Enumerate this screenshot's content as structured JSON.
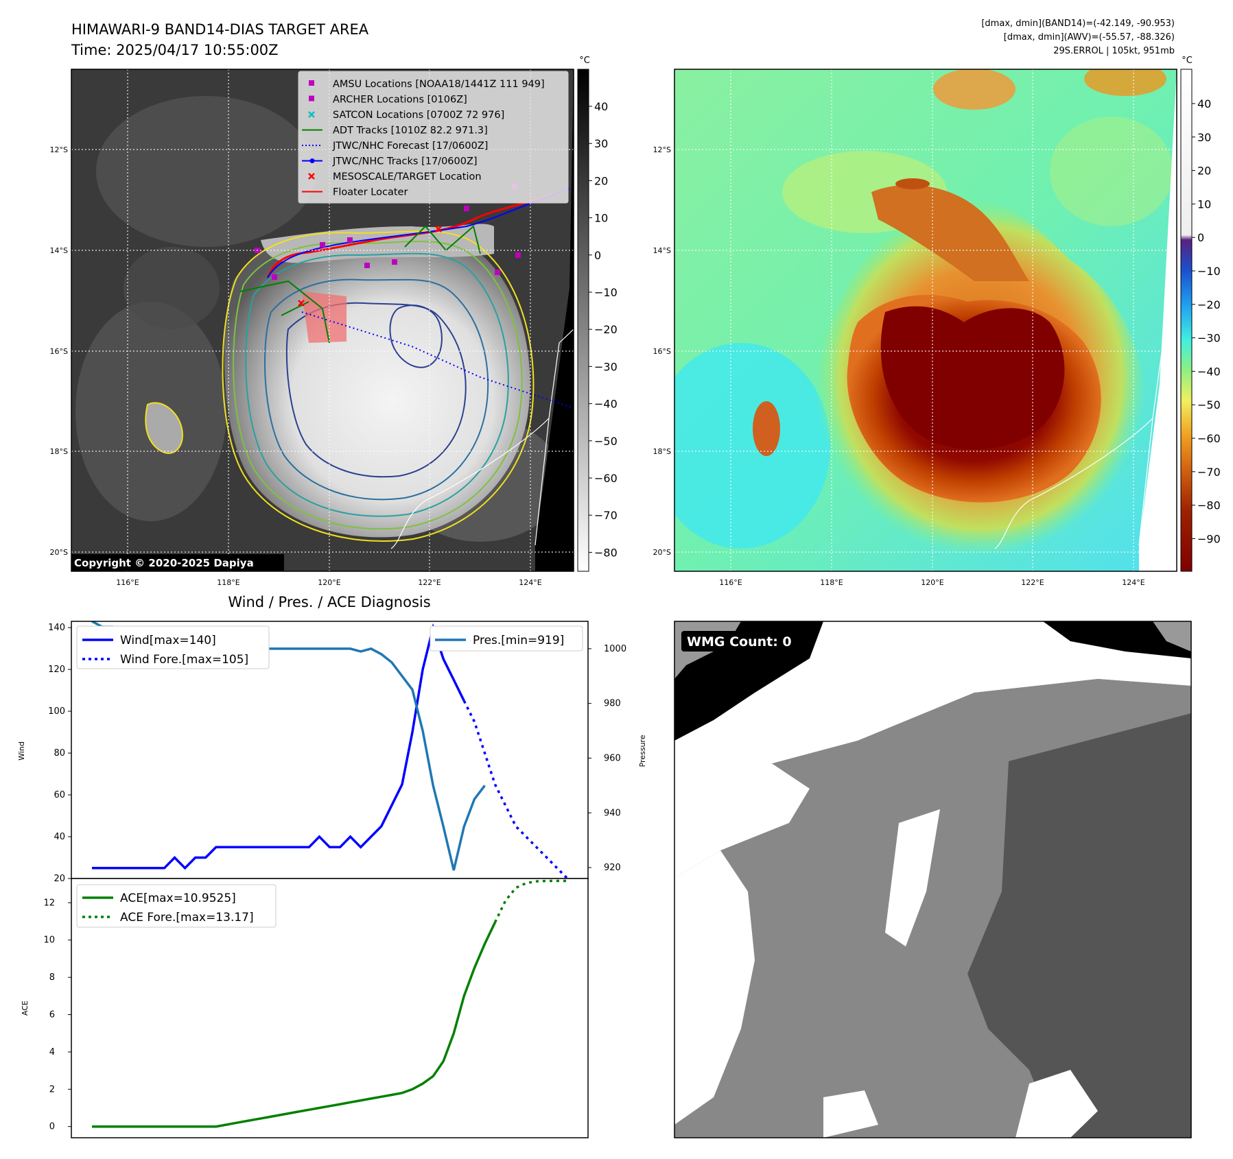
{
  "header": {
    "title_line1": "HIMAWARI-9 BAND14-DIAS TARGET AREA",
    "title_line2": "Time: 2025/04/17 10:55:00Z",
    "info_line1": "[dmax, dmin](BAND14)=(-42.149, -90.953)",
    "info_line2": "[dmax, dmin](AWV)=(-55.57, -88.326)",
    "info_line3": "29S.ERROL | 105kt, 951mb"
  },
  "map_axes": {
    "lat_labels": [
      "12°S",
      "14°S",
      "16°S",
      "18°S",
      "20°S"
    ],
    "lon_labels": [
      "116°E",
      "118°E",
      "120°E",
      "122°E",
      "124°E"
    ]
  },
  "panel1": {
    "copyright": "Copyright © 2020-2025 Dapiya",
    "colorbar_unit": "°C",
    "colorbar_ticks": [
      "40",
      "30",
      "20",
      "10",
      "0",
      "−10",
      "−20",
      "−30",
      "−40",
      "−50",
      "−60",
      "−70",
      "−80"
    ],
    "legend": [
      {
        "label": "AMSU Locations [NOAA18/1441Z 111 949]",
        "color": "#bf00bf",
        "marker": "square"
      },
      {
        "label": "ARCHER Locations [0106Z]",
        "color": "#bf00bf",
        "marker": "square"
      },
      {
        "label": "SATCON Locations [0700Z 72 976]",
        "color": "#00bfbf",
        "marker": "x"
      },
      {
        "label": "ADT Tracks [1010Z 82.2 971.3]",
        "color": "#008000",
        "marker": "line"
      },
      {
        "label": "JTWC/NHC Forecast [17/0600Z]",
        "color": "#0000ff",
        "marker": "dotted"
      },
      {
        "label": "JTWC/NHC Tracks [17/0600Z]",
        "color": "#0000ff",
        "marker": "line-dot"
      },
      {
        "label": "MESOSCALE/TARGET Location",
        "color": "#ff0000",
        "marker": "x"
      },
      {
        "label": "Floater Locater",
        "color": "#ff0000",
        "marker": "line"
      }
    ]
  },
  "panel2": {
    "colorbar_unit": "°C",
    "colorbar_ticks": [
      "40",
      "30",
      "20",
      "10",
      "0",
      "−10",
      "−20",
      "−30",
      "−40",
      "−50",
      "−60",
      "−70",
      "−80",
      "−90"
    ]
  },
  "panel4": {
    "wmg_label": "WMG Count: 0"
  },
  "chart_data": [
    {
      "type": "line",
      "title": "Wind / Pres. / ACE Diagnosis",
      "ylabel": "Wind",
      "ylabel_right": "Pressure",
      "ylim": [
        20,
        143
      ],
      "ylim_right": [
        916,
        1010
      ],
      "yticks": [
        20,
        40,
        60,
        80,
        100,
        120,
        140
      ],
      "yticks_right": [
        920,
        940,
        960,
        980,
        1000
      ],
      "x": [
        0,
        1,
        2,
        3,
        4,
        5,
        6,
        7,
        8,
        9,
        10,
        11,
        12,
        13,
        14,
        15,
        16,
        17,
        18,
        19,
        20,
        21,
        22,
        23,
        24,
        25,
        26,
        27,
        28,
        29,
        30,
        31,
        32,
        33,
        34,
        35,
        36,
        37,
        38,
        39,
        40,
        41,
        42,
        43,
        44,
        45,
        46
      ],
      "series": [
        {
          "name": "Wind[max=140]",
          "axis": "left",
          "color": "#0000ff",
          "style": "solid",
          "values": [
            25,
            25,
            25,
            25,
            25,
            25,
            25,
            25,
            30,
            25,
            30,
            30,
            35,
            35,
            35,
            35,
            35,
            35,
            35,
            35,
            35,
            35,
            40,
            35,
            35,
            40,
            35,
            40,
            45,
            55,
            65,
            90,
            120,
            140,
            125,
            115,
            105,
            null,
            null,
            null,
            null,
            null,
            null,
            null,
            null,
            null,
            null
          ]
        },
        {
          "name": "Wind Fore.[max=105]",
          "axis": "left",
          "color": "#0000ff",
          "style": "dotted",
          "values": [
            null,
            null,
            null,
            null,
            null,
            null,
            null,
            null,
            null,
            null,
            null,
            null,
            null,
            null,
            null,
            null,
            null,
            null,
            null,
            null,
            null,
            null,
            null,
            null,
            null,
            null,
            null,
            null,
            null,
            null,
            null,
            null,
            null,
            null,
            null,
            null,
            105,
            95,
            80,
            65,
            55,
            45,
            40,
            35,
            30,
            25,
            20
          ]
        },
        {
          "name": "Pres.[min=919]",
          "axis": "right",
          "color": "#1f77b4",
          "style": "solid",
          "values": [
            1010,
            1008,
            1008,
            1006,
            1005,
            1002,
            1001,
            1000,
            1001,
            1000,
            1000,
            1000,
            1000,
            1000,
            1000,
            1000,
            1000,
            1000,
            1000,
            1000,
            1000,
            1000,
            1000,
            1000,
            1000,
            1000,
            999,
            1000,
            998,
            995,
            990,
            985,
            970,
            950,
            935,
            919,
            935,
            945,
            950,
            null,
            null,
            null,
            null,
            null,
            null,
            null,
            null
          ]
        }
      ]
    },
    {
      "type": "line",
      "ylabel": "ACE",
      "ylim": [
        -0.6,
        13.3
      ],
      "yticks": [
        0,
        2,
        4,
        6,
        8,
        10,
        12
      ],
      "x": [
        0,
        1,
        2,
        3,
        4,
        5,
        6,
        7,
        8,
        9,
        10,
        11,
        12,
        13,
        14,
        15,
        16,
        17,
        18,
        19,
        20,
        21,
        22,
        23,
        24,
        25,
        26,
        27,
        28,
        29,
        30,
        31,
        32,
        33,
        34,
        35,
        36,
        37,
        38,
        39,
        40,
        41,
        42,
        43,
        44,
        45,
        46
      ],
      "series": [
        {
          "name": "ACE[max=10.9525]",
          "color": "#008000",
          "style": "solid",
          "values": [
            0,
            0,
            0,
            0,
            0,
            0,
            0,
            0,
            0,
            0,
            0,
            0,
            0,
            0.1,
            0.2,
            0.3,
            0.4,
            0.5,
            0.6,
            0.7,
            0.8,
            0.9,
            1.0,
            1.1,
            1.2,
            1.3,
            1.4,
            1.5,
            1.6,
            1.7,
            1.8,
            2.0,
            2.3,
            2.7,
            3.5,
            5.0,
            7.0,
            8.5,
            9.8,
            10.95,
            null,
            null,
            null,
            null,
            null,
            null,
            null
          ]
        },
        {
          "name": "ACE Fore.[max=13.17]",
          "color": "#008000",
          "style": "dotted",
          "values": [
            null,
            null,
            null,
            null,
            null,
            null,
            null,
            null,
            null,
            null,
            null,
            null,
            null,
            null,
            null,
            null,
            null,
            null,
            null,
            null,
            null,
            null,
            null,
            null,
            null,
            null,
            null,
            null,
            null,
            null,
            null,
            null,
            null,
            null,
            null,
            null,
            null,
            null,
            null,
            10.95,
            12.1,
            12.8,
            13.05,
            13.15,
            13.17,
            13.17,
            13.17
          ]
        }
      ]
    }
  ]
}
